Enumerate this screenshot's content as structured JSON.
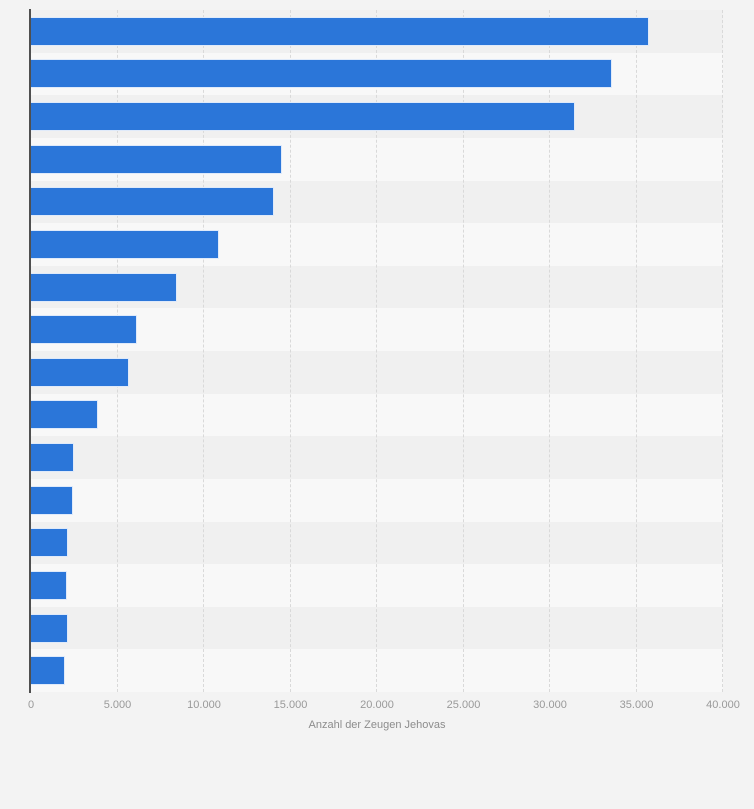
{
  "chart_data": {
    "type": "bar",
    "orientation": "horizontal",
    "title": "",
    "xlabel": "Anzahl der Zeugen Jehovas",
    "ylabel": "",
    "xlim": [
      0,
      40000
    ],
    "xtick_values": [
      0,
      5000,
      10000,
      15000,
      20000,
      25000,
      30000,
      35000,
      40000
    ],
    "xtick_labels": [
      "0",
      "5.000",
      "10.000",
      "15.000",
      "20.000",
      "25.000",
      "30.000",
      "35.000",
      "40.000"
    ],
    "grid": "vertical-dashed",
    "legend_position": "none",
    "category_labels_visible": false,
    "values": [
      35700,
      33600,
      31450,
      14500,
      14050,
      10850,
      8450,
      6150,
      5650,
      3850,
      2500,
      2400,
      2150,
      2100,
      2150,
      1950
    ]
  },
  "colors": {
    "bar": "#2b76d9",
    "band_dark": "#f0f0f0",
    "band_light": "#f8f8f8",
    "page_background": "#f3f3f3",
    "axis_line": "#4f4f4f",
    "gridline": "#d9d9d9",
    "tick_label": "#999999",
    "axis_title": "#8c8c8c"
  }
}
